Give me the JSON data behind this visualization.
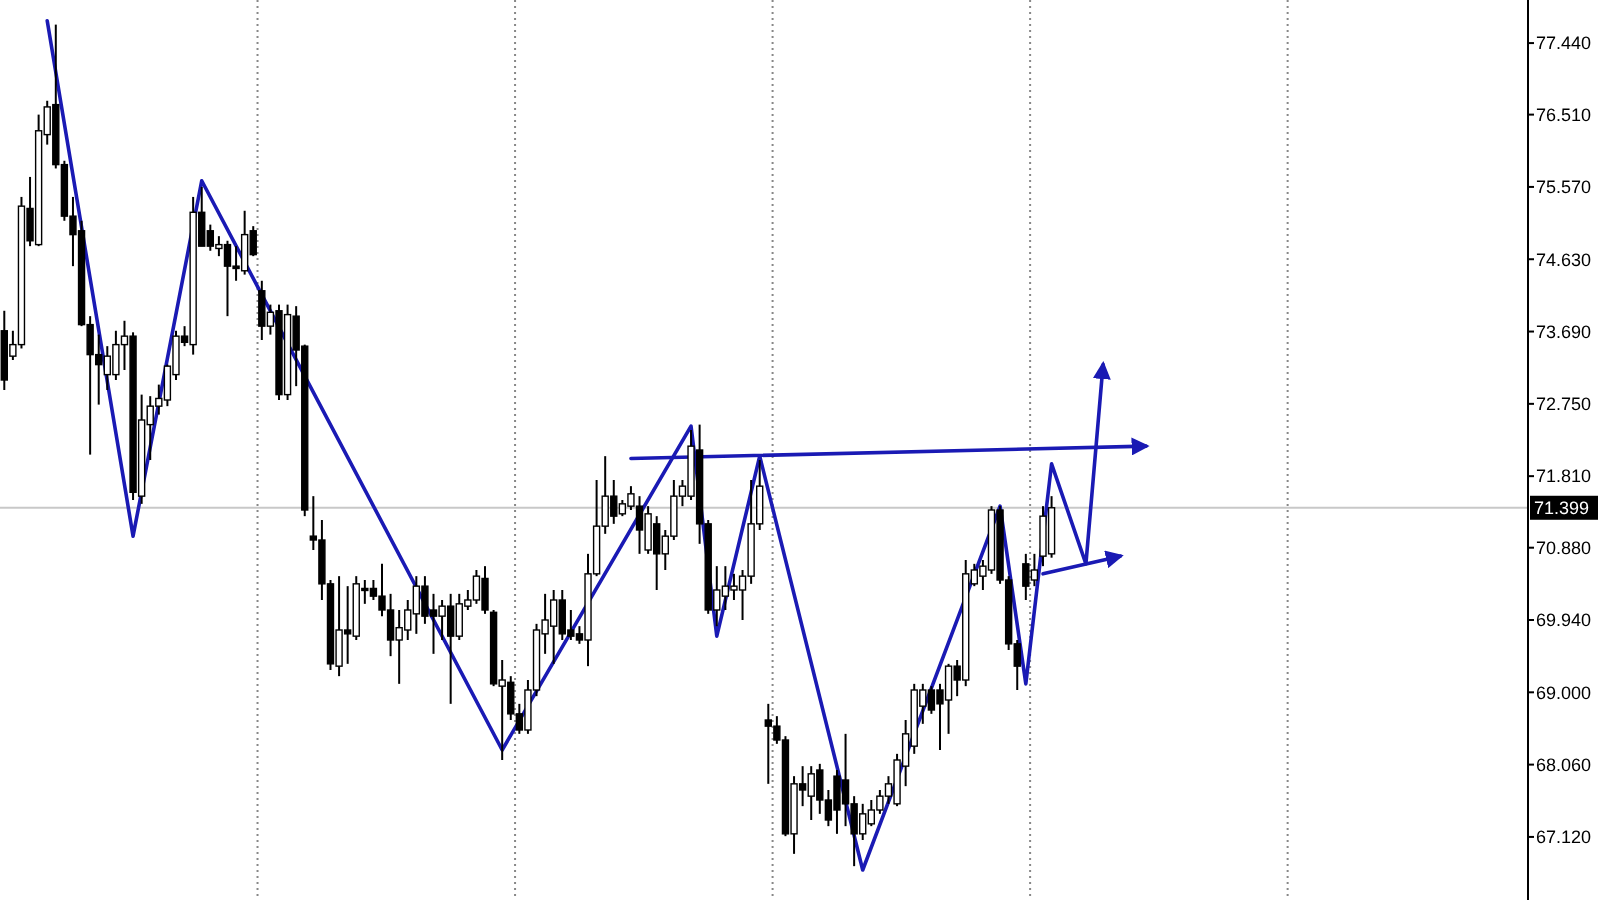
{
  "chart_data": {
    "type": "candlestick",
    "categories": [
      null,
      null,
      null,
      null,
      null,
      null,
      null,
      null,
      null,
      null,
      null,
      null,
      null,
      null,
      null,
      null,
      null,
      null,
      null,
      null,
      null,
      null,
      null,
      null,
      null,
      null,
      null,
      null,
      null,
      null,
      null,
      null,
      null,
      null,
      null,
      null,
      null,
      null,
      null,
      null,
      null,
      null,
      null,
      null,
      null,
      null,
      null,
      null,
      null,
      null,
      null,
      null,
      null,
      null,
      null,
      null,
      null,
      null,
      null,
      null,
      null,
      null,
      null,
      null,
      null,
      null,
      null,
      null,
      null,
      null,
      null,
      null,
      null,
      null,
      null,
      null,
      null,
      null,
      null,
      null,
      null,
      null,
      null,
      null,
      null,
      null,
      null,
      null,
      null,
      null,
      null,
      null,
      null,
      null,
      null,
      null,
      null,
      null,
      null,
      null,
      null,
      null,
      null,
      null,
      null,
      null,
      null,
      null,
      null,
      null,
      null,
      null,
      null,
      null,
      null,
      null,
      null,
      null,
      null,
      null,
      null,
      null,
      null,
      null,
      null,
      null,
      null,
      null,
      null,
      null,
      null,
      null,
      null,
      null,
      null,
      null,
      null,
      null,
      null,
      null,
      null,
      null,
      null,
      null,
      null,
      null,
      null,
      null,
      null,
      null,
      null,
      null,
      null,
      null,
      null,
      null,
      null,
      null,
      null,
      null,
      null,
      null,
      null,
      null,
      null,
      null,
      null,
      null,
      null,
      null,
      null,
      null,
      null,
      null,
      null,
      null,
      null,
      null
    ],
    "ohlc": [
      [
        73.7,
        73.96,
        72.93,
        73.06
      ],
      [
        73.37,
        73.7,
        73.32,
        73.52
      ],
      [
        73.52,
        75.44,
        73.47,
        75.32
      ],
      [
        75.29,
        75.7,
        74.8,
        74.87
      ],
      [
        74.82,
        76.51,
        74.8,
        76.3
      ],
      [
        76.25,
        76.69,
        76.12,
        76.61
      ],
      [
        76.64,
        77.68,
        75.81,
        75.86
      ],
      [
        75.86,
        75.91,
        75.13,
        75.19
      ],
      [
        75.19,
        75.44,
        74.54,
        74.95
      ],
      [
        75.0,
        75.13,
        73.76,
        73.78
      ],
      [
        73.78,
        73.89,
        72.09,
        73.39
      ],
      [
        73.39,
        73.65,
        72.74,
        73.26
      ],
      [
        73.13,
        73.5,
        72.93,
        73.37
      ],
      [
        73.13,
        73.7,
        73.06,
        73.52
      ],
      [
        73.52,
        73.83,
        73.19,
        73.63
      ],
      [
        73.63,
        73.68,
        71.5,
        71.6
      ],
      [
        71.55,
        72.87,
        71.45,
        72.54
      ],
      [
        72.48,
        72.85,
        72.02,
        72.72
      ],
      [
        72.72,
        73.0,
        72.61,
        72.82
      ],
      [
        72.8,
        73.26,
        72.72,
        73.24
      ],
      [
        73.13,
        73.7,
        73.06,
        73.63
      ],
      [
        73.63,
        73.76,
        73.5,
        73.55
      ],
      [
        73.52,
        75.44,
        73.39,
        75.24
      ],
      [
        75.24,
        75.57,
        74.8,
        74.8
      ],
      [
        75.0,
        75.08,
        74.74,
        74.8
      ],
      [
        74.77,
        74.93,
        74.67,
        74.82
      ],
      [
        74.82,
        74.87,
        73.89,
        74.54
      ],
      [
        74.54,
        74.8,
        74.35,
        74.51
      ],
      [
        74.48,
        75.26,
        74.43,
        74.95
      ],
      [
        75.0,
        75.06,
        74.67,
        74.69
      ],
      [
        74.22,
        74.35,
        73.58,
        73.76
      ],
      [
        73.76,
        74.04,
        73.65,
        73.94
      ],
      [
        73.96,
        74.04,
        72.8,
        72.87
      ],
      [
        72.87,
        74.04,
        72.8,
        73.91
      ],
      [
        73.89,
        74.02,
        72.98,
        73.45
      ],
      [
        73.5,
        73.52,
        71.29,
        71.37
      ],
      [
        71.03,
        71.55,
        70.85,
        70.98
      ],
      [
        70.98,
        71.24,
        70.2,
        70.41
      ],
      [
        70.41,
        70.46,
        69.29,
        69.37
      ],
      [
        69.34,
        70.51,
        69.21,
        69.81
      ],
      [
        69.81,
        70.38,
        69.37,
        69.76
      ],
      [
        69.73,
        70.51,
        69.68,
        70.41
      ],
      [
        70.35,
        70.46,
        70.15,
        70.33
      ],
      [
        70.35,
        70.46,
        70.2,
        70.25
      ],
      [
        70.25,
        70.67,
        69.99,
        70.07
      ],
      [
        70.07,
        70.28,
        69.47,
        69.68
      ],
      [
        69.68,
        70.07,
        69.11,
        69.84
      ],
      [
        69.81,
        70.2,
        69.68,
        70.07
      ],
      [
        70.02,
        70.51,
        69.76,
        70.38
      ],
      [
        70.38,
        70.51,
        69.89,
        69.99
      ],
      [
        70.07,
        70.28,
        69.5,
        69.99
      ],
      [
        69.99,
        70.2,
        69.68,
        70.12
      ],
      [
        70.12,
        70.28,
        68.85,
        69.73
      ],
      [
        69.73,
        70.28,
        69.68,
        70.15
      ],
      [
        70.12,
        70.33,
        70.07,
        70.2
      ],
      [
        70.2,
        70.59,
        70.15,
        70.51
      ],
      [
        70.48,
        70.64,
        70.02,
        70.07
      ],
      [
        70.04,
        70.07,
        69.08,
        69.11
      ],
      [
        69.08,
        69.42,
        68.12,
        69.16
      ],
      [
        69.13,
        69.21,
        68.64,
        68.72
      ],
      [
        68.72,
        68.85,
        68.46,
        68.51
      ],
      [
        68.51,
        69.16,
        68.46,
        69.03
      ],
      [
        69.03,
        69.89,
        68.95,
        69.81
      ],
      [
        69.76,
        70.28,
        69.5,
        69.94
      ],
      [
        69.86,
        70.33,
        69.37,
        70.2
      ],
      [
        70.2,
        70.33,
        69.68,
        69.76
      ],
      [
        69.81,
        70.07,
        69.68,
        69.73
      ],
      [
        69.76,
        69.86,
        69.63,
        69.68
      ],
      [
        69.68,
        70.8,
        69.34,
        70.54
      ],
      [
        70.54,
        71.76,
        70.51,
        71.16
      ],
      [
        71.16,
        72.07,
        71.06,
        71.55
      ],
      [
        71.55,
        71.76,
        71.19,
        71.29
      ],
      [
        71.32,
        71.5,
        71.29,
        71.45
      ],
      [
        71.42,
        71.68,
        71.37,
        71.58
      ],
      [
        71.42,
        71.55,
        70.8,
        71.11
      ],
      [
        70.85,
        71.42,
        70.8,
        71.32
      ],
      [
        71.19,
        71.29,
        70.33,
        70.8
      ],
      [
        70.8,
        71.11,
        70.59,
        71.03
      ],
      [
        71.03,
        71.76,
        70.98,
        71.55
      ],
      [
        71.55,
        71.76,
        71.42,
        71.68
      ],
      [
        71.55,
        72.41,
        71.5,
        72.2
      ],
      [
        72.15,
        72.48,
        70.93,
        71.19
      ],
      [
        71.19,
        71.24,
        70.02,
        70.07
      ],
      [
        70.07,
        70.64,
        69.86,
        70.33
      ],
      [
        70.25,
        70.64,
        70.07,
        70.38
      ],
      [
        70.33,
        70.54,
        70.2,
        70.38
      ],
      [
        70.33,
        70.59,
        69.94,
        70.51
      ],
      [
        70.51,
        71.76,
        70.41,
        71.19
      ],
      [
        71.19,
        72.02,
        71.11,
        71.68
      ],
      [
        68.64,
        68.85,
        67.81,
        68.56
      ],
      [
        68.56,
        68.69,
        68.33,
        68.38
      ],
      [
        68.38,
        68.43,
        67.13,
        67.16
      ],
      [
        67.16,
        67.91,
        66.9,
        67.81
      ],
      [
        67.81,
        68.04,
        67.52,
        67.73
      ],
      [
        67.65,
        68.04,
        67.34,
        67.94
      ],
      [
        67.99,
        68.07,
        67.42,
        67.6
      ],
      [
        67.6,
        67.73,
        67.26,
        67.34
      ],
      [
        67.91,
        67.99,
        67.16,
        67.47
      ],
      [
        67.86,
        68.46,
        67.26,
        67.55
      ],
      [
        67.55,
        67.65,
        66.74,
        67.16
      ],
      [
        67.16,
        67.55,
        67.08,
        67.42
      ],
      [
        67.29,
        67.6,
        67.26,
        67.47
      ],
      [
        67.47,
        67.73,
        67.42,
        67.65
      ],
      [
        67.65,
        67.91,
        67.55,
        67.81
      ],
      [
        67.55,
        68.2,
        67.52,
        68.12
      ],
      [
        68.04,
        68.64,
        67.78,
        68.46
      ],
      [
        68.3,
        69.11,
        68.2,
        69.03
      ],
      [
        68.82,
        69.11,
        68.59,
        69.03
      ],
      [
        69.03,
        69.08,
        68.72,
        68.77
      ],
      [
        69.03,
        69.11,
        68.25,
        68.85
      ],
      [
        68.9,
        69.37,
        68.46,
        69.34
      ],
      [
        69.34,
        69.42,
        68.95,
        69.16
      ],
      [
        69.16,
        70.72,
        69.08,
        70.54
      ],
      [
        70.41,
        70.67,
        70.38,
        70.59
      ],
      [
        70.51,
        70.72,
        70.33,
        70.64
      ],
      [
        70.59,
        71.42,
        70.54,
        71.37
      ],
      [
        71.37,
        71.42,
        70.41,
        70.46
      ],
      [
        70.46,
        70.51,
        69.55,
        69.63
      ],
      [
        69.63,
        69.68,
        69.03,
        69.34
      ],
      [
        70.67,
        70.8,
        70.2,
        70.38
      ],
      [
        70.46,
        70.8,
        70.38,
        70.59
      ],
      [
        70.77,
        71.42,
        70.64,
        71.29
      ],
      [
        70.8,
        71.55,
        70.75,
        71.399
      ],
      null,
      null,
      null,
      null,
      null,
      null,
      null,
      null,
      null,
      null,
      null,
      null,
      null,
      null,
      null,
      null,
      null,
      null,
      null,
      null,
      null,
      null,
      null,
      null,
      null,
      null,
      null,
      null,
      null,
      null,
      null,
      null,
      null,
      null,
      null,
      null,
      null,
      null,
      null,
      null,
      null,
      null,
      null,
      null,
      null,
      null,
      null,
      null,
      null,
      null,
      null,
      null,
      null,
      null,
      null
    ],
    "series": [
      {
        "type": "line",
        "color": "#1a1ab4",
        "values": [
          null,
          null,
          null,
          null,
          null,
          77.73,
          null,
          null,
          null,
          null,
          null,
          null,
          null,
          null,
          null,
          71.03,
          null,
          null,
          null,
          null,
          null,
          null,
          null,
          75.65,
          null,
          null,
          null,
          null,
          null,
          null,
          null,
          null,
          null,
          null,
          null,
          null,
          null,
          null,
          null,
          null,
          null,
          null,
          null,
          null,
          null,
          null,
          null,
          null,
          null,
          null,
          null,
          null,
          null,
          null,
          null,
          null,
          null,
          null,
          68.25,
          null,
          null,
          null,
          null,
          null,
          null,
          null,
          null,
          null,
          null,
          null,
          null,
          null,
          null,
          null,
          null,
          null,
          null,
          null,
          null,
          null,
          72.46,
          null,
          null,
          69.73,
          null,
          null,
          null,
          null,
          72.07,
          null,
          null,
          null,
          null,
          null,
          null,
          null,
          null,
          null,
          null,
          null,
          66.69,
          null,
          null,
          null,
          null,
          null,
          null,
          null,
          null,
          null,
          null,
          null,
          null,
          null,
          null,
          null,
          71.42,
          null,
          null,
          69.11,
          null,
          null,
          71.97,
          null,
          null,
          null,
          70.67,
          null,
          73.26,
          null,
          null,
          null,
          null,
          null,
          null,
          null,
          null,
          null,
          null,
          null,
          null,
          null,
          null,
          null,
          null,
          null,
          null,
          null,
          null,
          null,
          null,
          null,
          null,
          null,
          null,
          null,
          null,
          null,
          null,
          null,
          null,
          null,
          null,
          null,
          null,
          null,
          null,
          null,
          null,
          null,
          null,
          null,
          null,
          null,
          null,
          null,
          null,
          null
        ]
      },
      {
        "type": "line",
        "color": "#1a1ab4",
        "values": [
          null,
          null,
          null,
          null,
          null,
          null,
          null,
          null,
          null,
          null,
          null,
          null,
          null,
          null,
          null,
          null,
          null,
          null,
          null,
          null,
          null,
          null,
          null,
          null,
          null,
          null,
          null,
          null,
          null,
          null,
          null,
          null,
          null,
          null,
          null,
          null,
          null,
          null,
          null,
          null,
          null,
          null,
          null,
          null,
          null,
          null,
          null,
          null,
          null,
          null,
          null,
          null,
          null,
          null,
          null,
          null,
          null,
          null,
          null,
          null,
          null,
          null,
          null,
          null,
          null,
          null,
          null,
          null,
          null,
          null,
          null,
          null,
          null,
          72.04,
          null,
          null,
          null,
          null,
          null,
          null,
          null,
          null,
          null,
          null,
          null,
          null,
          null,
          null,
          null,
          null,
          null,
          null,
          null,
          null,
          null,
          null,
          null,
          null,
          null,
          null,
          null,
          null,
          null,
          null,
          null,
          null,
          null,
          null,
          null,
          null,
          null,
          null,
          null,
          null,
          null,
          null,
          null,
          null,
          null,
          null,
          null,
          null,
          null,
          null,
          null,
          null,
          null,
          null,
          null,
          null,
          null,
          null,
          null,
          72.2,
          null,
          null,
          null,
          null,
          null,
          null,
          null,
          null,
          null,
          null,
          null,
          null,
          null,
          null,
          null,
          null,
          null,
          null,
          null,
          null,
          null,
          null,
          null,
          null,
          null,
          null,
          null,
          null,
          null,
          null,
          null,
          null,
          null,
          null,
          null,
          null,
          null,
          null,
          null,
          null,
          null,
          null,
          null,
          null
        ]
      },
      {
        "type": "line",
        "color": "#1a1ab4",
        "values": [
          null,
          null,
          null,
          null,
          null,
          null,
          null,
          null,
          null,
          null,
          null,
          null,
          null,
          null,
          null,
          null,
          null,
          null,
          null,
          null,
          null,
          null,
          null,
          null,
          null,
          null,
          null,
          null,
          null,
          null,
          null,
          null,
          null,
          null,
          null,
          null,
          null,
          null,
          null,
          null,
          null,
          null,
          null,
          null,
          null,
          null,
          null,
          null,
          null,
          null,
          null,
          null,
          null,
          null,
          null,
          null,
          null,
          null,
          null,
          null,
          null,
          null,
          null,
          null,
          null,
          null,
          null,
          null,
          null,
          null,
          null,
          null,
          null,
          null,
          null,
          null,
          null,
          null,
          null,
          null,
          null,
          null,
          null,
          null,
          null,
          null,
          null,
          null,
          null,
          null,
          null,
          null,
          null,
          null,
          null,
          null,
          null,
          null,
          null,
          null,
          null,
          null,
          null,
          null,
          null,
          null,
          null,
          null,
          null,
          null,
          null,
          null,
          null,
          null,
          null,
          null,
          null,
          null,
          null,
          null,
          null,
          70.54,
          null,
          null,
          null,
          null,
          null,
          null,
          null,
          null,
          70.77,
          null,
          null,
          null,
          null,
          null,
          null,
          null,
          null,
          null,
          null,
          null,
          null,
          null,
          null,
          null,
          null,
          null,
          null,
          null,
          null,
          null,
          null,
          null,
          null,
          null,
          null,
          null,
          null,
          null,
          null,
          null,
          null,
          null,
          null,
          null,
          null,
          null,
          null,
          null,
          null,
          null,
          null,
          null,
          null,
          null,
          null,
          null
        ]
      }
    ],
    "ylim": [
      66.3,
      78.0
    ],
    "yticks": [
      {
        "value": 67.12,
        "label": "67.120"
      },
      {
        "value": 68.06,
        "label": "68.060"
      },
      {
        "value": 69.0,
        "label": "69.000"
      },
      {
        "value": 69.94,
        "label": "69.940"
      },
      {
        "value": 70.88,
        "label": "70.880"
      },
      {
        "value": 71.81,
        "label": "71.810"
      },
      {
        "value": 72.75,
        "label": "72.750"
      },
      {
        "value": 73.69,
        "label": "73.690"
      },
      {
        "value": 74.63,
        "label": "74.630"
      },
      {
        "value": 75.57,
        "label": "75.570"
      },
      {
        "value": 76.51,
        "label": "76.510"
      },
      {
        "value": 77.44,
        "label": "77.440"
      }
    ],
    "ref_lines": [
      {
        "axis": "y",
        "value": 71.399,
        "label": "71.399",
        "color": "#c8c8c8"
      }
    ],
    "grid": "x"
  }
}
